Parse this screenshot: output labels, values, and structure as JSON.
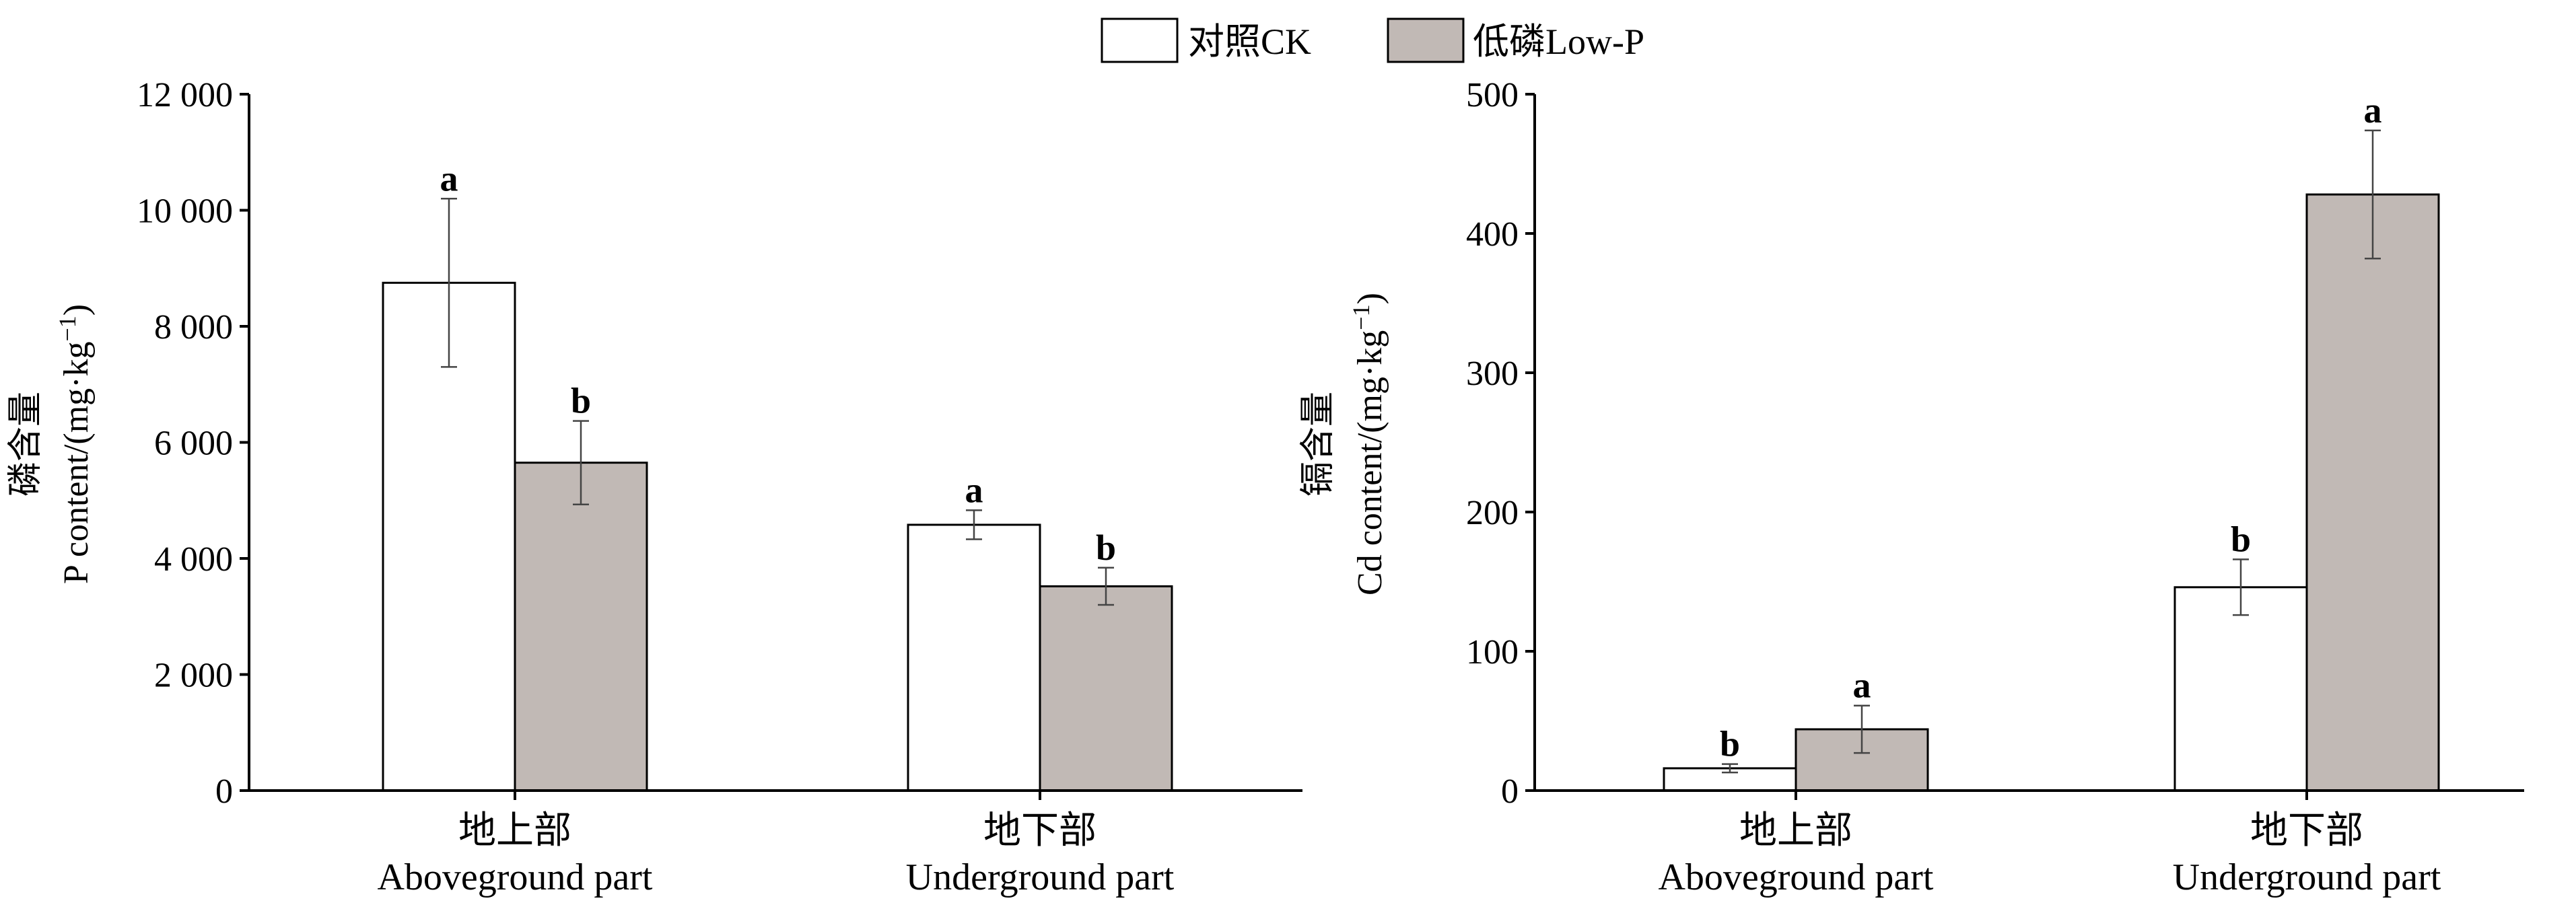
{
  "legend": {
    "items": [
      {
        "label": "对照CK",
        "color": "#ffffff"
      },
      {
        "label": "低磷Low-P",
        "color": "#c1b9b5"
      }
    ]
  },
  "chart_data": [
    {
      "type": "bar",
      "ylabel_cn": "磷含量",
      "ylabel_en": "P content/(mg·kg",
      "ylabel_sup": "−1",
      "ylabel_close": ")",
      "ylim": [
        0,
        12000
      ],
      "yticks": [
        0,
        2000,
        4000,
        6000,
        8000,
        10000,
        12000
      ],
      "ytick_labels": [
        "0",
        "2 000",
        "4 000",
        "6 000",
        "8 000",
        "10 000",
        "12 000"
      ],
      "categories": [
        {
          "cn": "地上部",
          "en": "Aboveground part"
        },
        {
          "cn": "地下部",
          "en": "Underground part"
        }
      ],
      "series": [
        {
          "name": "对照CK",
          "color": "#ffffff",
          "values": [
            8750,
            4580
          ],
          "errors": [
            1450,
            250
          ],
          "letters": [
            "a",
            "a"
          ]
        },
        {
          "name": "低磷Low-P",
          "color": "#c1b9b5",
          "values": [
            5650,
            3520
          ],
          "errors": [
            720,
            320
          ],
          "letters": [
            "b",
            "b"
          ]
        }
      ]
    },
    {
      "type": "bar",
      "ylabel_cn": "镉含量",
      "ylabel_en": "Cd content/(mg·kg",
      "ylabel_sup": "−1",
      "ylabel_close": ")",
      "ylim": [
        0,
        500
      ],
      "yticks": [
        0,
        100,
        200,
        300,
        400,
        500
      ],
      "ytick_labels": [
        "0",
        "100",
        "200",
        "300",
        "400",
        "500"
      ],
      "categories": [
        {
          "cn": "地上部",
          "en": "Aboveground part"
        },
        {
          "cn": "地下部",
          "en": "Underground part"
        }
      ],
      "series": [
        {
          "name": "对照CK",
          "color": "#ffffff",
          "values": [
            16,
            146
          ],
          "errors": [
            3,
            20
          ],
          "letters": [
            "b",
            "b"
          ]
        },
        {
          "name": "低磷Low-P",
          "color": "#c1b9b5",
          "values": [
            44,
            428
          ],
          "errors": [
            17,
            46
          ],
          "letters": [
            "a",
            "a"
          ]
        }
      ]
    }
  ]
}
